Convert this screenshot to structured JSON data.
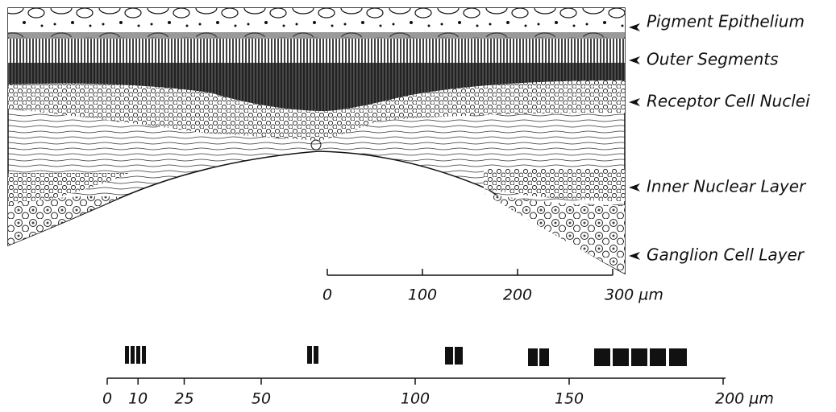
{
  "labels": [
    "Pigment Epithelium",
    "Outer Segments",
    "Receptor Cell Nuclei",
    "Inner Nuclear Layer",
    "Ganglion Cell Layer"
  ],
  "scale_bar": {
    "ticks": [
      0,
      100,
      200,
      {
        "value": 300,
        "label": "300 µm"
      }
    ]
  },
  "distance_scale": {
    "ticks": [
      0,
      10,
      25,
      50,
      100,
      150,
      {
        "value": 200,
        "label": "200 µm"
      }
    ]
  }
}
